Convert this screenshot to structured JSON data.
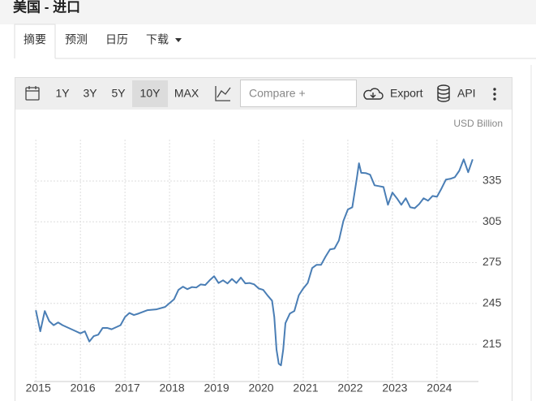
{
  "header": {
    "title": "美国 - 进口"
  },
  "tabs": [
    "摘要",
    "预测",
    "日历",
    "下载"
  ],
  "toolbar": {
    "ranges": [
      "1Y",
      "3Y",
      "5Y",
      "10Y",
      "MAX"
    ],
    "compare": "Compare +",
    "export": "Export",
    "api": "API"
  },
  "chart_data": {
    "type": "line",
    "y_label": "USD Billion",
    "x": [
      2015.0,
      2015.1,
      2015.2,
      2015.3,
      2015.4,
      2015.5,
      2015.6,
      2015.7,
      2015.8,
      2015.9,
      2016.0,
      2016.1,
      2016.2,
      2016.3,
      2016.4,
      2016.5,
      2016.6,
      2016.7,
      2016.8,
      2016.9,
      2017.0,
      2017.1,
      2017.2,
      2017.3,
      2017.5,
      2017.7,
      2017.9,
      2018.1,
      2018.2,
      2018.3,
      2018.4,
      2018.5,
      2018.6,
      2018.7,
      2018.8,
      2018.9,
      2019.0,
      2019.1,
      2019.2,
      2019.3,
      2019.4,
      2019.5,
      2019.6,
      2019.7,
      2019.8,
      2019.9,
      2020.0,
      2020.1,
      2020.2,
      2020.3,
      2020.35,
      2020.4,
      2020.45,
      2020.5,
      2020.55,
      2020.6,
      2020.7,
      2020.8,
      2020.9,
      2021.0,
      2021.1,
      2021.2,
      2021.3,
      2021.4,
      2021.5,
      2021.6,
      2021.7,
      2021.8,
      2021.9,
      2022.0,
      2022.1,
      2022.2,
      2022.25,
      2022.3,
      2022.4,
      2022.5,
      2022.6,
      2022.7,
      2022.8,
      2022.9,
      2023.0,
      2023.1,
      2023.2,
      2023.3,
      2023.4,
      2023.5,
      2023.6,
      2023.7,
      2023.8,
      2023.9,
      2024.0,
      2024.1,
      2024.2,
      2024.3,
      2024.4,
      2024.5,
      2024.6,
      2024.7,
      2024.8
    ],
    "series": [
      {
        "color": "#4a7eb5",
        "values": [
          240,
          224.5,
          239.4,
          232,
          229,
          231,
          229,
          227.5,
          226,
          224.5,
          223,
          224.5,
          217,
          221,
          222,
          227,
          227,
          226,
          227.5,
          229,
          235,
          238,
          236.5,
          237.5,
          240,
          240.6,
          242.4,
          248,
          255,
          257.3,
          255.5,
          257,
          256.7,
          259,
          258.5,
          262,
          265,
          260,
          262,
          259.7,
          263,
          260,
          264,
          259.7,
          260,
          259,
          256,
          255,
          250.8,
          247,
          235,
          211,
          200.7,
          199.5,
          211,
          230.5,
          237.6,
          239.4,
          251,
          256,
          260,
          271,
          273.4,
          273.4,
          279.4,
          284.7,
          285.3,
          291.3,
          305.6,
          314,
          315.7,
          336.6,
          348,
          341,
          340.8,
          339.6,
          331.8,
          331.2,
          330.6,
          317.5,
          326.5,
          322.3,
          317.5,
          322.3,
          315.7,
          315,
          318,
          322.3,
          320.5,
          324,
          323.4,
          329.4,
          336,
          336.6,
          337.8,
          342.5,
          350.9,
          341.4,
          350.9
        ]
      }
    ],
    "xlim": [
      2014.96,
      2024.93
    ],
    "xticks": [
      2015,
      2016,
      2017,
      2018,
      2019,
      2020,
      2021,
      2022,
      2023,
      2024
    ],
    "ylim": [
      187.6,
      365.4
    ],
    "yticks": [
      215,
      245,
      275,
      305,
      335
    ],
    "grid": true
  }
}
